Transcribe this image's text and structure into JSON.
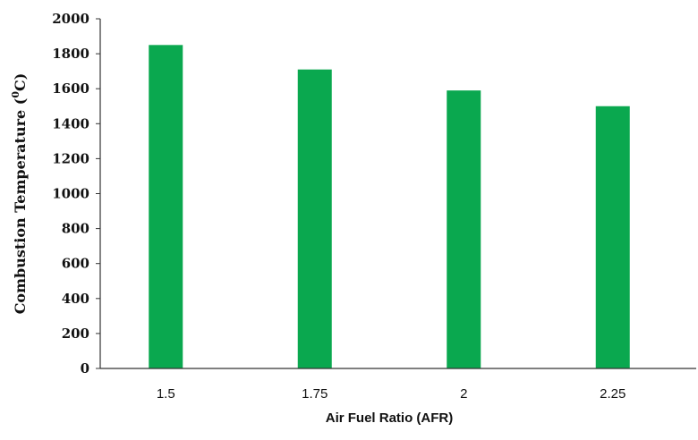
{
  "chart_data": {
    "type": "bar",
    "categories": [
      "1.5",
      "1.75",
      "2",
      "2.25"
    ],
    "values": [
      1850,
      1710,
      1590,
      1500
    ],
    "title": "",
    "xlabel": "Air Fuel Ratio (AFR)",
    "ylabel_prefix": "Combustion Temperature (",
    "ylabel_unit_sup": "0",
    "ylabel_suffix": "C)",
    "ylim": [
      0,
      2000
    ],
    "yticks": [
      "0",
      "200",
      "400",
      "600",
      "800",
      "1000",
      "1200",
      "1400",
      "1600",
      "1800",
      "2000"
    ],
    "grid": false,
    "legend": "none",
    "bar_color": "#0aa84f",
    "axis_color": "#333333"
  }
}
